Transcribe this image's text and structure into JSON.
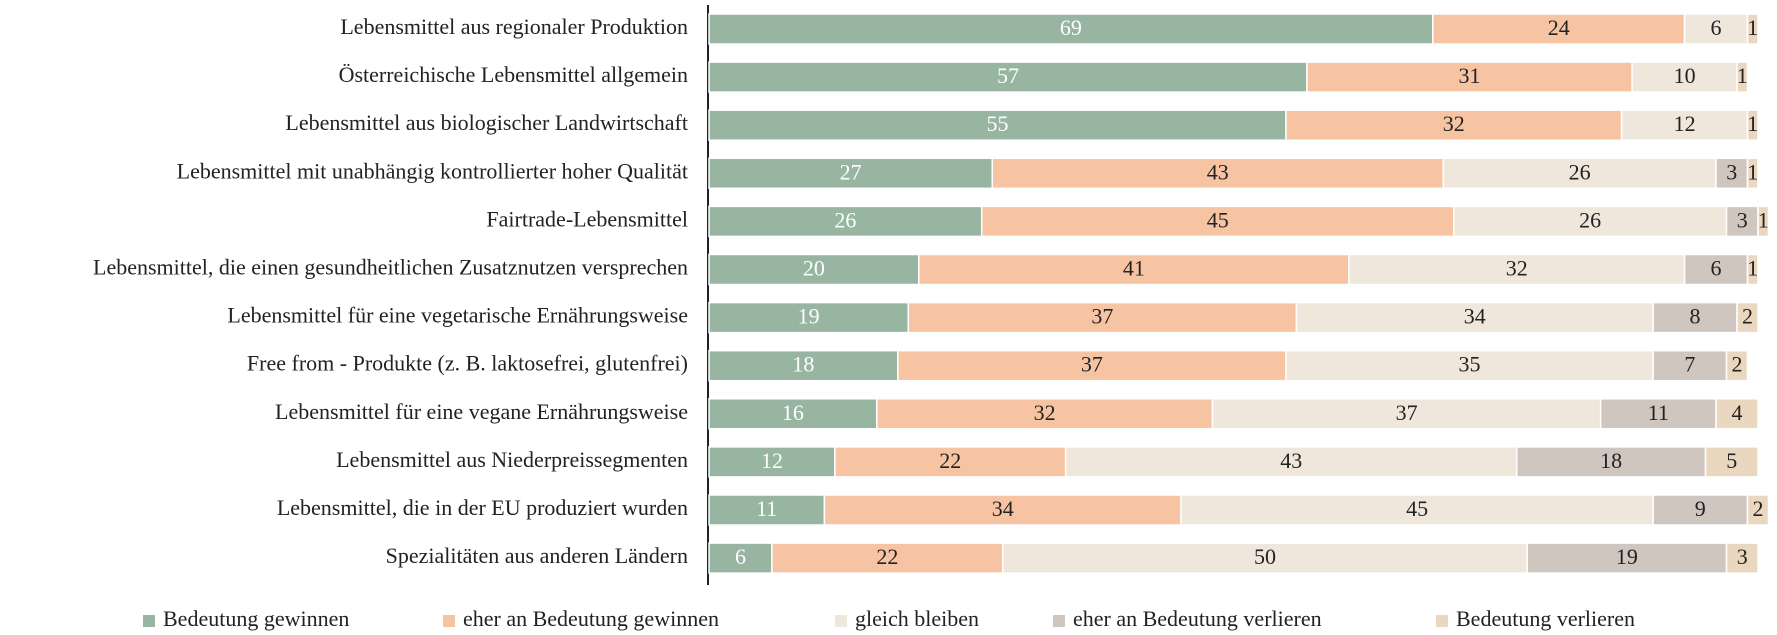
{
  "chart_data": {
    "type": "stacked_bar_horizontal",
    "categories": [
      "Lebensmittel aus regionaler Produktion",
      "Österreichische Lebensmittel allgemein",
      "Lebensmittel aus biologischer Landwirtschaft",
      "Lebensmittel mit unabhängig kontrollierter hoher Qualität",
      "Fairtrade-Lebensmittel",
      "Lebensmittel, die einen gesundheitlichen Zusatznutzen versprechen",
      "Lebensmittel für eine vegetarische Ernährungsweise",
      "Free from - Produkte (z. B. laktosefrei, glutenfrei)",
      "Lebensmittel für eine vegane Ernährungsweise",
      "Lebensmittel aus Niederpreissegmenten",
      "Lebensmittel, die in der EU produziert wurden",
      "Spezialitäten aus anderen Ländern"
    ],
    "series": [
      {
        "name": "Bedeutung gewinnen",
        "color": "#97b5a0",
        "label_color": "#ffffff",
        "values": [
          69,
          57,
          55,
          27,
          26,
          20,
          19,
          18,
          16,
          12,
          11,
          6
        ]
      },
      {
        "name": "eher an Bedeutung gewinnen",
        "color": "#f7c4a3",
        "label_color": "#222222",
        "values": [
          24,
          31,
          32,
          43,
          45,
          41,
          37,
          37,
          32,
          22,
          34,
          22
        ]
      },
      {
        "name": "gleich bleiben",
        "color": "#efe6dc",
        "label_color": "#222222",
        "values": [
          6,
          10,
          12,
          26,
          26,
          32,
          34,
          35,
          37,
          43,
          45,
          50
        ]
      },
      {
        "name": "eher an Bedeutung verlieren",
        "color": "#cfc6bf",
        "label_color": "#222222",
        "values": [
          null,
          null,
          null,
          3,
          3,
          6,
          8,
          7,
          11,
          18,
          9,
          19
        ]
      },
      {
        "name": "Bedeutung verlieren",
        "color": "#ead7c0",
        "label_color": "#222222",
        "values": [
          1,
          1,
          1,
          1,
          1,
          1,
          2,
          2,
          4,
          5,
          2,
          3
        ]
      }
    ],
    "xlim": [
      0,
      100
    ],
    "legend": "bottom"
  }
}
